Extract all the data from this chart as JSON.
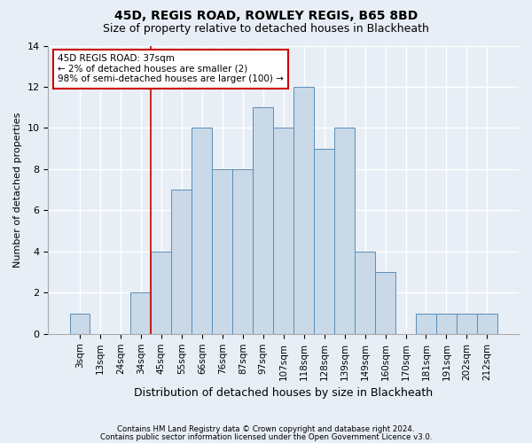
{
  "title1": "45D, REGIS ROAD, ROWLEY REGIS, B65 8BD",
  "title2": "Size of property relative to detached houses in Blackheath",
  "xlabel": "Distribution of detached houses by size in Blackheath",
  "ylabel": "Number of detached properties",
  "bar_labels": [
    "3sqm",
    "13sqm",
    "24sqm",
    "34sqm",
    "45sqm",
    "55sqm",
    "66sqm",
    "76sqm",
    "87sqm",
    "97sqm",
    "107sqm",
    "118sqm",
    "128sqm",
    "139sqm",
    "149sqm",
    "160sqm",
    "170sqm",
    "181sqm",
    "191sqm",
    "202sqm",
    "212sqm"
  ],
  "bar_values": [
    1,
    0,
    0,
    2,
    4,
    7,
    10,
    8,
    8,
    11,
    10,
    12,
    9,
    10,
    4,
    3,
    0,
    1,
    1,
    1,
    1
  ],
  "bar_color": "#c9d9e8",
  "bar_edgecolor": "#5b8db8",
  "annotation_text": "45D REGIS ROAD: 37sqm\n← 2% of detached houses are smaller (2)\n98% of semi-detached houses are larger (100) →",
  "footer1": "Contains HM Land Registry data © Crown copyright and database right 2024.",
  "footer2": "Contains public sector information licensed under the Open Government Licence v3.0.",
  "ylim": [
    0,
    14
  ],
  "yticks": [
    0,
    2,
    4,
    6,
    8,
    10,
    12,
    14
  ],
  "bg_color": "#e8eef5",
  "grid_color": "#ffffff",
  "annotation_box_edgecolor": "#cc0000",
  "redline_x": 3.5,
  "title_fontsize": 10,
  "subtitle_fontsize": 9,
  "axis_label_fontsize": 8,
  "tick_fontsize": 7.5,
  "footer_fontsize": 6.2
}
